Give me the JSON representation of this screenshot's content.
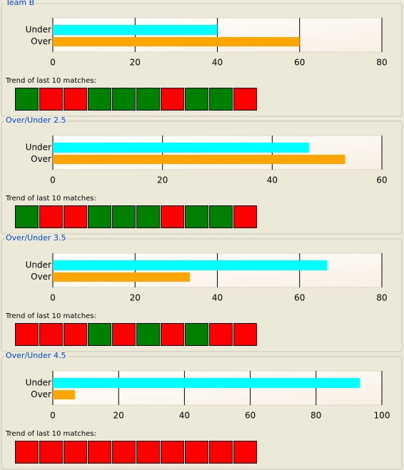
{
  "chart_data": [
    {
      "type": "bar",
      "orientation": "horizontal",
      "title": "Team B",
      "categories": [
        "Under",
        "Over"
      ],
      "values": [
        40,
        60
      ],
      "colors": [
        "#00ffff",
        "#ffa500"
      ],
      "xlim": [
        0,
        80
      ],
      "xticks": [
        0,
        20,
        40,
        60,
        80
      ],
      "grid": true,
      "trend_label": "Trend of last 10 matches:",
      "trend": [
        "#008000",
        "#ff0000",
        "#ff0000",
        "#008000",
        "#008000",
        "#008000",
        "#ff0000",
        "#008000",
        "#008000",
        "#ff0000"
      ]
    },
    {
      "type": "bar",
      "orientation": "horizontal",
      "title": "Over/Under 2.5",
      "categories": [
        "Under",
        "Over"
      ],
      "values": [
        46.7,
        53.3
      ],
      "colors": [
        "#00ffff",
        "#ffa500"
      ],
      "xlim": [
        0,
        60
      ],
      "xticks": [
        0,
        20,
        40,
        60
      ],
      "grid": true,
      "trend_label": "Trend of last 10 matches:",
      "trend": [
        "#008000",
        "#ff0000",
        "#ff0000",
        "#008000",
        "#008000",
        "#008000",
        "#ff0000",
        "#008000",
        "#008000",
        "#ff0000"
      ]
    },
    {
      "type": "bar",
      "orientation": "horizontal",
      "title": "Over/Under 3.5",
      "categories": [
        "Under",
        "Over"
      ],
      "values": [
        66.7,
        33.3
      ],
      "colors": [
        "#00ffff",
        "#ffa500"
      ],
      "xlim": [
        0,
        80
      ],
      "xticks": [
        0,
        20,
        40,
        60,
        80
      ],
      "grid": true,
      "trend_label": "Trend of last 10 matches:",
      "trend": [
        "#ff0000",
        "#ff0000",
        "#ff0000",
        "#008000",
        "#ff0000",
        "#008000",
        "#ff0000",
        "#008000",
        "#ff0000",
        "#ff0000"
      ]
    },
    {
      "type": "bar",
      "orientation": "horizontal",
      "title": "Over/Under 4.5",
      "categories": [
        "Under",
        "Over"
      ],
      "values": [
        93.3,
        6.7
      ],
      "colors": [
        "#00ffff",
        "#ffa500"
      ],
      "xlim": [
        0,
        100
      ],
      "xticks": [
        0,
        20,
        40,
        60,
        80,
        100
      ],
      "grid": true,
      "trend_label": "Trend of last 10 matches:",
      "trend": [
        "#ff0000",
        "#ff0000",
        "#ff0000",
        "#ff0000",
        "#ff0000",
        "#ff0000",
        "#ff0000",
        "#ff0000",
        "#ff0000",
        "#ff0000"
      ]
    }
  ]
}
